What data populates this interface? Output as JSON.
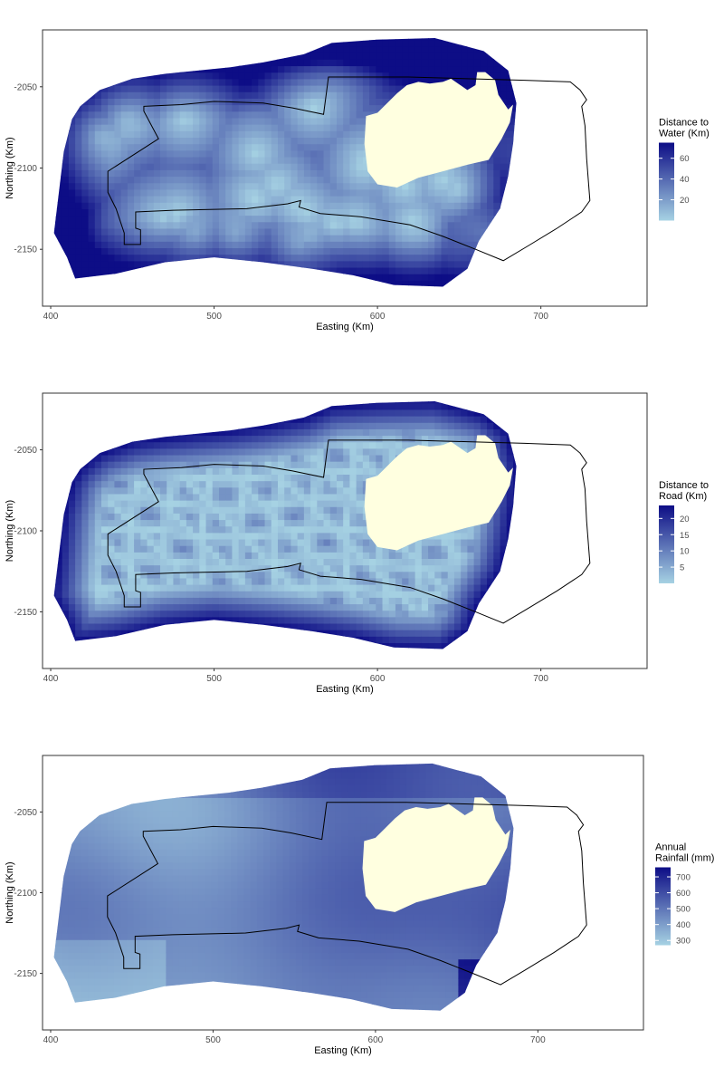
{
  "chart_data": [
    {
      "type": "heatmap",
      "xlabel": "Easting (Km)",
      "ylabel": "Northing (Km)",
      "x_ticks": [
        400,
        500,
        600,
        700
      ],
      "y_ticks": [
        -2050,
        -2100,
        -2150
      ],
      "legend_title": [
        "Distance to",
        "Water (Km)"
      ],
      "legend_ticks": [
        60,
        40,
        20
      ],
      "legend_range": [
        0,
        75
      ],
      "colors": {
        "low": "#a6d2e3",
        "high": "#0d0d86",
        "lake": "#ffffe0"
      },
      "pattern": "water"
    },
    {
      "type": "heatmap",
      "xlabel": "Easting (Km)",
      "ylabel": "Northing (Km)",
      "x_ticks": [
        400,
        500,
        600,
        700
      ],
      "y_ticks": [
        -2050,
        -2100,
        -2150
      ],
      "legend_title": [
        "Distance to",
        "Road (Km)"
      ],
      "legend_ticks": [
        20,
        15,
        10,
        5
      ],
      "legend_range": [
        0,
        24
      ],
      "colors": {
        "low": "#a6d2e3",
        "high": "#0d0d86",
        "lake": "#ffffe0"
      },
      "pattern": "road"
    },
    {
      "type": "heatmap",
      "xlabel": "Easting (Km)",
      "ylabel": "Northing (Km)",
      "x_ticks": [
        400,
        500,
        600,
        700
      ],
      "y_ticks": [
        -2050,
        -2100,
        -2150
      ],
      "legend_title": [
        "Annual",
        "Rainfall (mm)"
      ],
      "legend_ticks": [
        700,
        600,
        500,
        400,
        300
      ],
      "legend_range": [
        270,
        760
      ],
      "colors": {
        "low": "#a6d2e3",
        "high": "#0d0d86",
        "lake": "#ffffe0"
      },
      "pattern": "rain"
    }
  ]
}
